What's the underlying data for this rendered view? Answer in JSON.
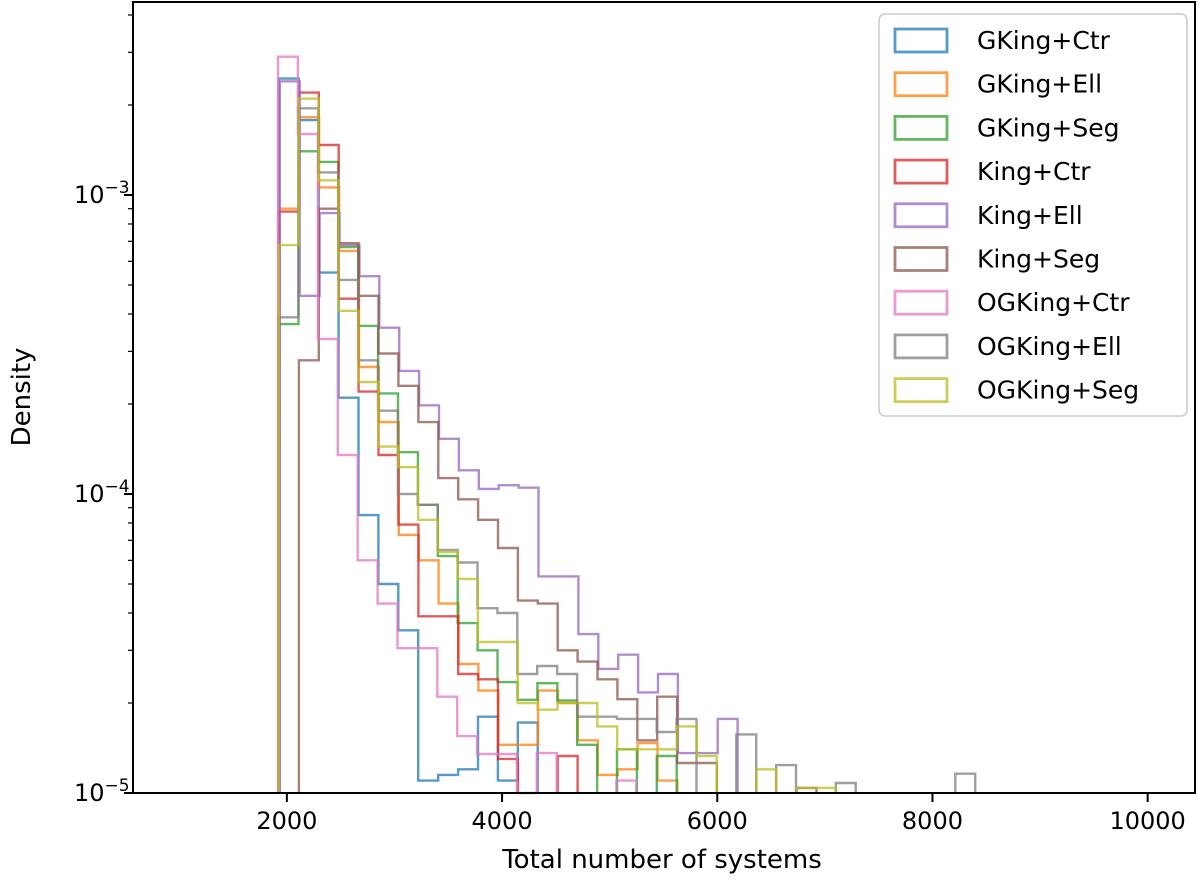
{
  "chart_data": {
    "type": "step-histogram",
    "xlabel": "Total number of systems",
    "ylabel": "Density",
    "x_ticks": [
      2000,
      4000,
      6000,
      8000,
      10000
    ],
    "y_tick_exponents": [
      -3,
      -4,
      -5
    ],
    "y_scale": "log",
    "xlim": [
      570,
      10440
    ],
    "ylim": [
      1e-05,
      0.0044
    ],
    "grid": false,
    "bin_width": 185,
    "legend": {
      "position": "upper right",
      "border_color": "#cccccc",
      "background": "#ffffff"
    },
    "axis_color": "#000000",
    "line_opacity": 0.75,
    "series": [
      {
        "name": "GKing+Ctr",
        "color": "#1f77b4",
        "start": 1926,
        "densities": [
          0.00245,
          0.00178,
          0.00055,
          0.00021,
          8.5e-05,
          5e-05,
          3.5e-05,
          1.1e-05,
          1.15e-05,
          1.2e-05,
          1.8e-05,
          1.1e-05,
          1.72e-05
        ]
      },
      {
        "name": "GKing+Ell",
        "color": "#ff7f0e",
        "start": 1930,
        "densities": [
          0.0009,
          0.00182,
          0.00106,
          0.00065,
          0.000266,
          0.000174,
          7.3e-05,
          6e-05,
          4.3e-05,
          2.7e-05,
          2.2e-05,
          1.45e-05,
          1.45e-05,
          2.2e-05,
          2e-05,
          1.5e-05,
          1.15e-05,
          1.2e-05,
          1.47e-05,
          1.1e-05
        ]
      },
      {
        "name": "GKing+Seg",
        "color": "#2ca02c",
        "start": 1923,
        "densities": [
          0.00037,
          0.0014,
          0.00129,
          0.00067,
          0.000365,
          0.000217,
          0.000138,
          9.2e-05,
          6.2e-05,
          3.7e-05,
          3e-05,
          2.35e-05,
          2.05e-05,
          2.33e-05,
          2.04e-05,
          1.45e-05,
          0,
          1.4e-05,
          0,
          1.33e-05
        ]
      },
      {
        "name": "King+Ctr",
        "color": "#d62728",
        "start": 1927,
        "densities": [
          0.00088,
          0.0022,
          0.00147,
          0.00045,
          0.00022,
          0.000135,
          7.9e-05,
          3.9e-05,
          3.9e-05,
          2.5e-05,
          2.4e-05,
          1.3e-05,
          0,
          0,
          1.33e-05
        ]
      },
      {
        "name": "King+Ell",
        "color": "#9467bd",
        "start": 1934,
        "densities": [
          0.0024,
          0.00046,
          0.00087,
          0.00068,
          0.000535,
          0.00036,
          0.000258,
          0.000198,
          0.000153,
          0.00012,
          0.000104,
          0.000107,
          0.000105,
          5.3e-05,
          5.3e-05,
          3.4e-05,
          2.6e-05,
          2.9e-05,
          2.17e-05,
          2.5e-05,
          1.36e-05,
          1.36e-05,
          1.77e-05
        ]
      },
      {
        "name": "King+Seg",
        "color": "#8c564b",
        "start": 2112,
        "densities": [
          0.00028,
          0.0009,
          0.00069,
          0.00046,
          0.000295,
          0.00023,
          0.000174,
          0.000113,
          9.6e-05,
          8.2e-05,
          6.6e-05,
          4.4e-05,
          4.3e-05,
          3e-05,
          2.75e-05,
          2.4e-05,
          2.06e-05,
          1.5e-05,
          2.1e-05,
          1.26e-05,
          1.26e-05,
          0,
          0,
          0,
          0,
          1.04e-05
        ]
      },
      {
        "name": "OGKing+Ctr",
        "color": "#e377c2",
        "start": 1918,
        "densities": [
          0.0029,
          0.0016,
          0.00033,
          0.000135,
          6e-05,
          4.3e-05,
          3.05e-05,
          3.05e-05,
          2.1e-05,
          1.55e-05,
          1.35e-05,
          1.35e-05,
          1e-05,
          1.36e-05,
          0,
          0,
          0,
          1.1e-05
        ]
      },
      {
        "name": "OGKing+Ell",
        "color": "#7f7f7f",
        "start": 1922,
        "densities": [
          0.00039,
          0.00195,
          0.00119,
          0.00052,
          0.00028,
          0.00019,
          0.0001,
          9.2e-05,
          6.5e-05,
          5.9e-05,
          4.15e-05,
          4e-05,
          2.5e-05,
          2.66e-05,
          2.5e-05,
          1.8e-05,
          1.8e-05,
          1.77e-05,
          1.77e-05,
          1.6e-05,
          1.77e-05,
          0,
          0,
          1.57e-05,
          0,
          1.24e-05,
          0,
          0,
          1.08e-05,
          0,
          0,
          0,
          0,
          0,
          1.16e-05
        ]
      },
      {
        "name": "OGKing+Seg",
        "color": "#bcbd22",
        "start": 1925,
        "densities": [
          0.00068,
          0.0021,
          0.00112,
          0.00041,
          0.000237,
          0.000144,
          0.000123,
          8.2e-05,
          6.4e-05,
          5.2e-05,
          3.2e-05,
          3.2e-05,
          2e-05,
          1.9e-05,
          2e-05,
          2e-05,
          1.67e-05,
          1.4e-05,
          1.4e-05,
          1.4e-05,
          1.67e-05,
          1.33e-05,
          0,
          0,
          1.2e-05,
          0,
          1.04e-05,
          1.04e-05
        ]
      }
    ]
  }
}
